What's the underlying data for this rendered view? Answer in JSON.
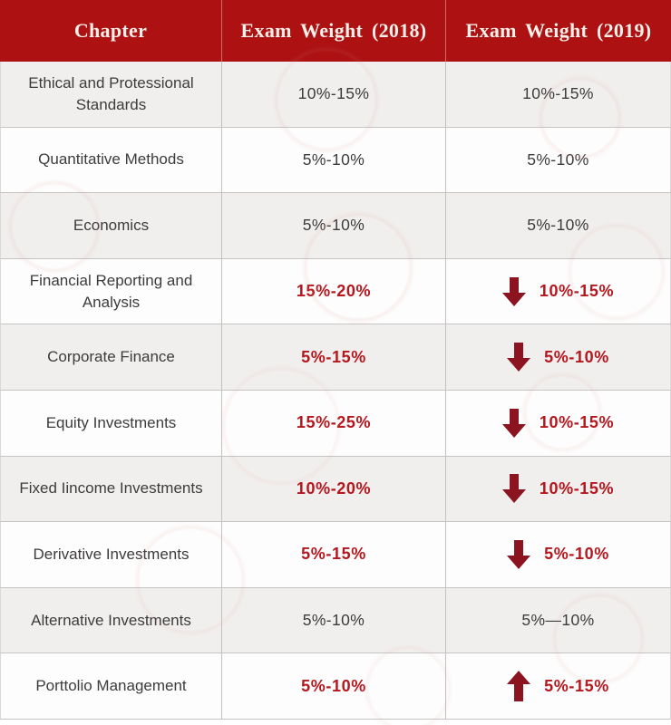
{
  "colors": {
    "header_bg": "#ad1112",
    "header_text": "#f7f0ea",
    "highlight_red": "#b6161d",
    "arrow_red": "#8c1420",
    "row_alt_bg": "#f1efee",
    "row_bg": "#fdfdfd",
    "body_text": "#3d3b3b",
    "border": "#c6c3c3"
  },
  "chart_data": {
    "type": "table",
    "columns": [
      "Chapter",
      "Exam Weight (2018)",
      "Exam Weight (2019)"
    ],
    "rows": [
      {
        "chapter": "Ethical and Protessional Standards",
        "weight_2018": "10%-15%",
        "weight_2019": "10%-15%",
        "change": "none",
        "emphasis": false
      },
      {
        "chapter": "Quantitative Methods",
        "weight_2018": "5%-10%",
        "weight_2019": "5%-10%",
        "change": "none",
        "emphasis": false
      },
      {
        "chapter": "Economics",
        "weight_2018": "5%-10%",
        "weight_2019": "5%-10%",
        "change": "none",
        "emphasis": false
      },
      {
        "chapter": "Financial Reporting and Analysis",
        "weight_2018": "15%-20%",
        "weight_2019": "10%-15%",
        "change": "decrease",
        "emphasis": true
      },
      {
        "chapter": "Corporate Finance",
        "weight_2018": "5%-15%",
        "weight_2019": "5%-10%",
        "change": "decrease",
        "emphasis": true
      },
      {
        "chapter": "Equity Investments",
        "weight_2018": "15%-25%",
        "weight_2019": "10%-15%",
        "change": "decrease",
        "emphasis": true
      },
      {
        "chapter": "Fixed Iincome Investments",
        "weight_2018": "10%-20%",
        "weight_2019": "10%-15%",
        "change": "decrease",
        "emphasis": true
      },
      {
        "chapter": "Derivative Investments",
        "weight_2018": "5%-15%",
        "weight_2019": "5%-10%",
        "change": "decrease",
        "emphasis": true
      },
      {
        "chapter": "Alternative Investments",
        "weight_2018": "5%-10%",
        "weight_2019": "5%—10%",
        "change": "none",
        "emphasis": false
      },
      {
        "chapter": "Porttolio Management",
        "weight_2018": "5%-10%",
        "weight_2019": "5%-15%",
        "change": "increase",
        "emphasis": true
      }
    ]
  }
}
